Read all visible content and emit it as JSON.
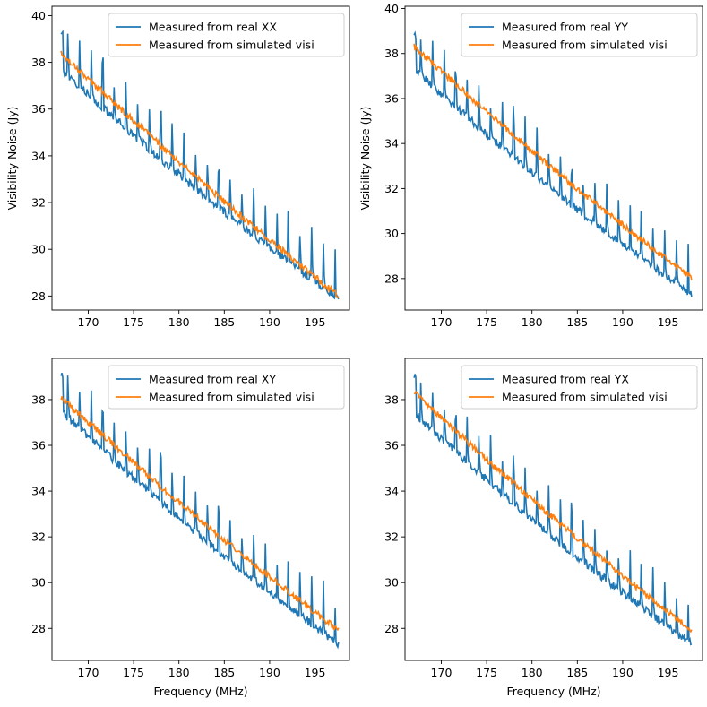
{
  "colors": {
    "real": "#1f77b4",
    "sim": "#ff7f0e"
  },
  "chart_data": [
    {
      "type": "line",
      "legend": {
        "placement": "top-right",
        "entries": [
          "Measured from real XX",
          "Measured from simulated visi"
        ]
      },
      "xlabel": "",
      "ylabel": "Visibility Noise (Jy)",
      "xlim": [
        166.0,
        198.8
      ],
      "ylim": [
        27.4,
        40.4
      ],
      "xticks": [
        170,
        175,
        180,
        185,
        190,
        195
      ],
      "yticks": [
        28,
        30,
        32,
        34,
        36,
        38,
        40
      ],
      "series": [
        {
          "name": "Measured from real XX",
          "x": [
            167.0,
            197.6
          ],
          "y": [
            37.7,
            27.9
          ]
        },
        {
          "name": "Measured from simulated visi",
          "x": [
            167.0,
            197.6
          ],
          "y": [
            38.4,
            28.0
          ]
        }
      ]
    },
    {
      "type": "line",
      "legend": {
        "placement": "top-right",
        "entries": [
          "Measured from real YY",
          "Measured from simulated visi"
        ]
      },
      "xlabel": "",
      "ylabel": "Visibility Noise (Jy)",
      "xlim": [
        166.0,
        198.8
      ],
      "ylim": [
        26.6,
        40.1
      ],
      "xticks": [
        170,
        175,
        180,
        185,
        190,
        195
      ],
      "yticks": [
        28,
        30,
        32,
        34,
        36,
        38,
        40
      ],
      "series": [
        {
          "name": "Measured from real YY",
          "x": [
            167.0,
            197.6
          ],
          "y": [
            37.3,
            27.3
          ]
        },
        {
          "name": "Measured from simulated visi",
          "x": [
            167.0,
            197.6
          ],
          "y": [
            38.3,
            28.0
          ]
        }
      ]
    },
    {
      "type": "line",
      "legend": {
        "placement": "top-right",
        "entries": [
          "Measured from real XY",
          "Measured from simulated visi"
        ]
      },
      "xlabel": "Frequency (MHz)",
      "ylabel": "",
      "xlim": [
        166.0,
        198.8
      ],
      "ylim": [
        26.6,
        39.8
      ],
      "xticks": [
        170,
        175,
        180,
        185,
        190,
        195
      ],
      "yticks": [
        28,
        30,
        32,
        34,
        36,
        38
      ],
      "series": [
        {
          "name": "Measured from real XY",
          "x": [
            167.0,
            197.6
          ],
          "y": [
            37.5,
            27.3
          ]
        },
        {
          "name": "Measured from simulated visi",
          "x": [
            167.0,
            197.6
          ],
          "y": [
            38.1,
            27.9
          ]
        }
      ]
    },
    {
      "type": "line",
      "legend": {
        "placement": "top-right",
        "entries": [
          "Measured from real YX",
          "Measured from simulated visi"
        ]
      },
      "xlabel": "Frequency (MHz)",
      "ylabel": "",
      "xlim": [
        166.0,
        198.8
      ],
      "ylim": [
        26.6,
        39.8
      ],
      "xticks": [
        170,
        175,
        180,
        185,
        190,
        195
      ],
      "yticks": [
        28,
        30,
        32,
        34,
        36,
        38
      ],
      "series": [
        {
          "name": "Measured from real YX",
          "x": [
            167.0,
            197.6
          ],
          "y": [
            37.4,
            27.3
          ]
        },
        {
          "name": "Measured from simulated visi",
          "x": [
            167.0,
            197.6
          ],
          "y": [
            38.3,
            27.9
          ]
        }
      ]
    }
  ]
}
